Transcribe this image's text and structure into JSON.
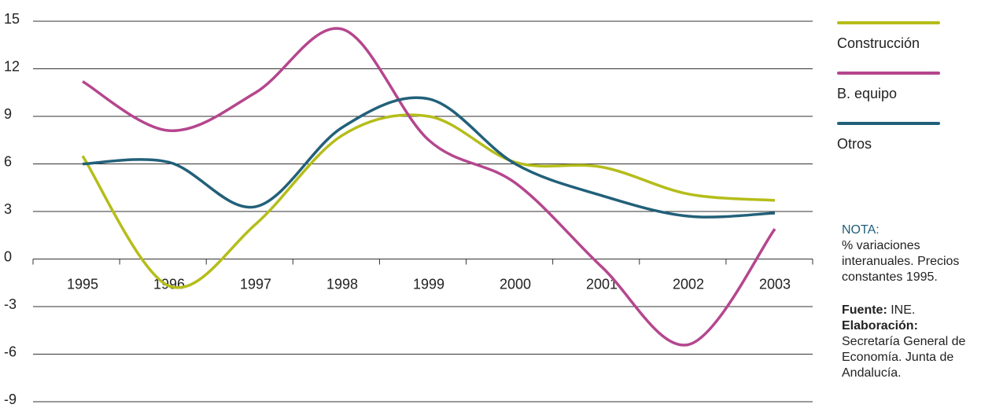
{
  "chart_data": {
    "type": "line",
    "categories": [
      "1995",
      "1996",
      "1997",
      "1998",
      "1999",
      "2000",
      "2001",
      "2002",
      "2003"
    ],
    "series": [
      {
        "name": "Construcción",
        "color": "#b5bd1a",
        "values": [
          6.5,
          -1.7,
          2.2,
          7.8,
          9.0,
          6.1,
          5.8,
          4.1,
          3.7
        ]
      },
      {
        "name": "B. equipo",
        "color": "#b5468e",
        "values": [
          11.2,
          8.1,
          10.5,
          14.5,
          7.5,
          4.8,
          -0.5,
          -5.4,
          1.9
        ]
      },
      {
        "name": "Otros",
        "color": "#22607a",
        "values": [
          6.0,
          6.1,
          3.3,
          8.3,
          10.1,
          6.0,
          4.0,
          2.7,
          2.9
        ]
      }
    ],
    "ylim": [
      -9,
      15
    ],
    "yticks": [
      -9,
      -6,
      -3,
      0,
      3,
      6,
      9,
      12,
      15
    ],
    "grid": true,
    "notes": {
      "nota_title": "NOTA:",
      "nota_text": "% variaciones interanuales. Precios constantes 1995.",
      "fuente_label": "Fuente:",
      "fuente_text": "INE.",
      "elaboracion_label": "Elaboración:",
      "elaboracion_text": "Secretaría General de Economía. Junta de Andalucía."
    }
  }
}
